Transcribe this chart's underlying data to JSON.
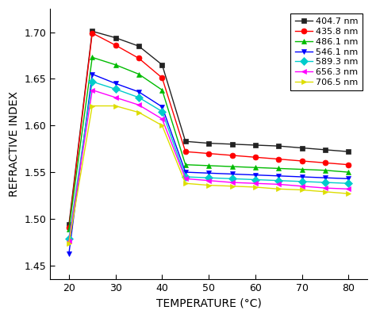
{
  "xlabel": "TEMPERATURE (°C)",
  "ylabel": "REFRACTIVE INDEX",
  "xlim": [
    16,
    84
  ],
  "ylim": [
    1.435,
    1.725
  ],
  "xticks": [
    20,
    30,
    40,
    50,
    60,
    70,
    80
  ],
  "yticks": [
    1.45,
    1.5,
    1.55,
    1.6,
    1.65,
    1.7
  ],
  "series": [
    {
      "label": "404.7 nm",
      "color": "#222222",
      "linestyle": "-",
      "marker": "s",
      "markersize": 5,
      "temps": [
        20,
        25,
        30,
        35,
        40,
        45,
        50,
        55,
        60,
        65,
        70,
        75,
        80
      ],
      "values": [
        1.494,
        1.701,
        1.694,
        1.685,
        1.665,
        1.583,
        1.581,
        1.58,
        1.579,
        1.578,
        1.576,
        1.574,
        1.572
      ]
    },
    {
      "label": "435.8 nm",
      "color": "#ff0000",
      "linestyle": "-",
      "marker": "o",
      "markersize": 5,
      "temps": [
        20,
        25,
        30,
        35,
        40,
        45,
        50,
        55,
        60,
        65,
        70,
        75,
        80
      ],
      "values": [
        1.491,
        1.699,
        1.686,
        1.672,
        1.651,
        1.572,
        1.57,
        1.568,
        1.566,
        1.564,
        1.562,
        1.56,
        1.558
      ]
    },
    {
      "label": "486.1 nm",
      "color": "#00bb00",
      "linestyle": "-",
      "marker": "^",
      "markersize": 5,
      "temps": [
        20,
        25,
        30,
        35,
        40,
        45,
        50,
        55,
        60,
        65,
        70,
        75,
        80
      ],
      "values": [
        1.489,
        1.673,
        1.665,
        1.655,
        1.638,
        1.558,
        1.557,
        1.556,
        1.555,
        1.554,
        1.553,
        1.552,
        1.55
      ]
    },
    {
      "label": "546.1 nm",
      "color": "#0000ff",
      "linestyle": "-",
      "marker": "v",
      "markersize": 5,
      "temps": [
        20,
        25,
        30,
        35,
        40,
        45,
        50,
        55,
        60,
        65,
        70,
        75,
        80
      ],
      "values": [
        1.463,
        1.655,
        1.645,
        1.636,
        1.62,
        1.55,
        1.549,
        1.548,
        1.547,
        1.546,
        1.545,
        1.544,
        1.543
      ]
    },
    {
      "label": "589.3 nm",
      "color": "#00cccc",
      "linestyle": "-",
      "marker": "D",
      "markersize": 5,
      "temps": [
        20,
        25,
        30,
        35,
        40,
        45,
        50,
        55,
        60,
        65,
        70,
        75,
        80
      ],
      "values": [
        1.479,
        1.647,
        1.639,
        1.63,
        1.615,
        1.545,
        1.544,
        1.543,
        1.542,
        1.541,
        1.54,
        1.539,
        1.538
      ]
    },
    {
      "label": "656.3 nm",
      "color": "#ff00ff",
      "linestyle": "-",
      "marker": "<",
      "markersize": 5,
      "temps": [
        20,
        25,
        30,
        35,
        40,
        45,
        50,
        55,
        60,
        65,
        70,
        75,
        80
      ],
      "values": [
        1.476,
        1.638,
        1.63,
        1.622,
        1.607,
        1.543,
        1.541,
        1.539,
        1.538,
        1.537,
        1.535,
        1.533,
        1.532
      ]
    },
    {
      "label": "706.5 nm",
      "color": "#dddd00",
      "linestyle": "-",
      "marker": ">",
      "markersize": 5,
      "temps": [
        20,
        25,
        30,
        35,
        40,
        45,
        50,
        55,
        60,
        65,
        70,
        75,
        80
      ],
      "values": [
        1.474,
        1.621,
        1.621,
        1.614,
        1.6,
        1.538,
        1.536,
        1.535,
        1.534,
        1.532,
        1.531,
        1.529,
        1.527
      ]
    }
  ],
  "legend_loc": "upper right",
  "figsize": [
    4.74,
    4.01
  ],
  "dpi": 100,
  "bg_color": "#ffffff"
}
